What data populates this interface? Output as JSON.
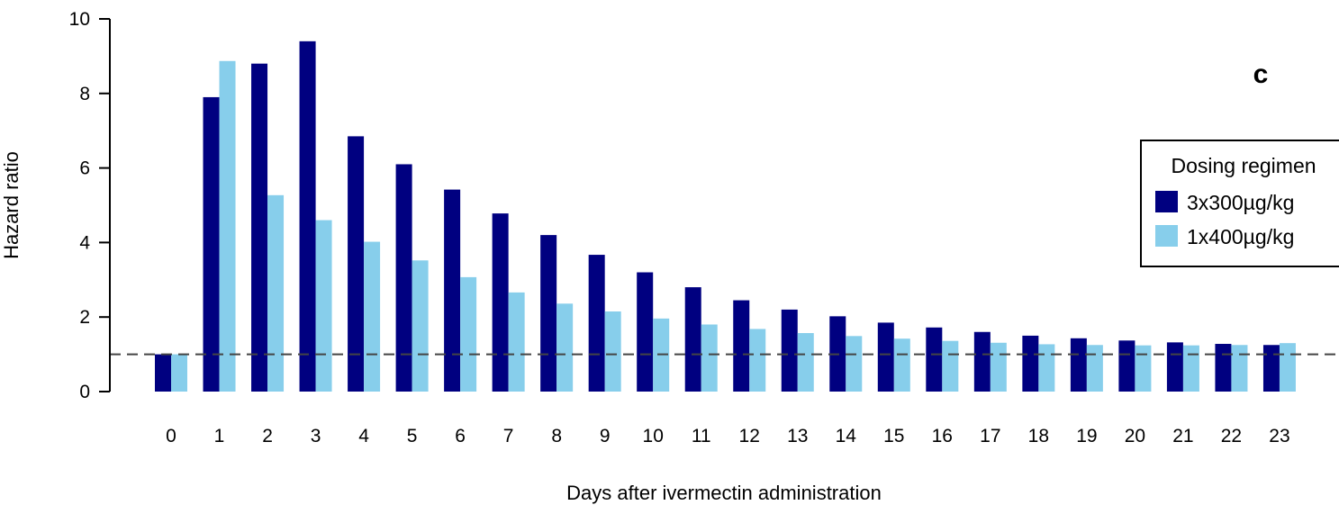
{
  "panel_label": "c",
  "colors": {
    "series_a": "#000080",
    "series_b": "#87CEEB",
    "reference_line": "#444444"
  },
  "chart_data": {
    "type": "bar",
    "xlabel": "Days after ivermectin administration",
    "ylabel": "Hazard ratio",
    "ylim": [
      0,
      10
    ],
    "yticks": [
      0,
      2,
      4,
      6,
      8,
      10
    ],
    "reference_line": 1,
    "grid": false,
    "legend": {
      "title": "Dosing regimen",
      "position": "right"
    },
    "categories": [
      "0",
      "1",
      "2",
      "3",
      "4",
      "5",
      "6",
      "7",
      "8",
      "9",
      "10",
      "11",
      "12",
      "13",
      "14",
      "15",
      "16",
      "17",
      "18",
      "19",
      "20",
      "21",
      "22",
      "23"
    ],
    "series": [
      {
        "name": "3x300µg/kg",
        "values": [
          1.0,
          7.9,
          8.8,
          9.4,
          6.85,
          6.1,
          5.42,
          4.78,
          4.2,
          3.67,
          3.2,
          2.8,
          2.45,
          2.2,
          2.02,
          1.85,
          1.72,
          1.6,
          1.5,
          1.43,
          1.37,
          1.32,
          1.28,
          1.25
        ]
      },
      {
        "name": "1x400µg/kg",
        "values": [
          1.0,
          8.87,
          5.27,
          4.6,
          4.02,
          3.52,
          3.07,
          2.66,
          2.36,
          2.15,
          1.96,
          1.8,
          1.68,
          1.57,
          1.49,
          1.42,
          1.36,
          1.31,
          1.27,
          1.25,
          1.24,
          1.24,
          1.25,
          1.3
        ]
      }
    ]
  }
}
